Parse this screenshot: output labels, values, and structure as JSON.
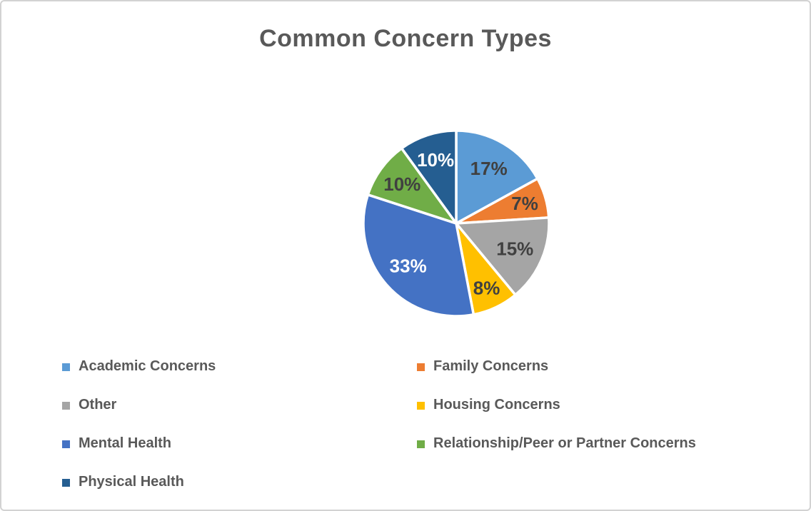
{
  "chart_data": {
    "type": "pie",
    "title": "Common Concern Types",
    "start_angle_deg": 0,
    "direction": "clockwise",
    "legend_position": "bottom",
    "legend_columns": 2,
    "title_color": "#595959",
    "slice_border_color": "#ffffff",
    "slices": [
      {
        "label": "Academic Concerns",
        "value": 17,
        "display": "17%",
        "color": "#5B9BD5",
        "label_color": "#404040"
      },
      {
        "label": "Family Concerns",
        "value": 7,
        "display": "7%",
        "color": "#ED7D31",
        "label_color": "#404040"
      },
      {
        "label": "Other",
        "value": 15,
        "display": "15%",
        "color": "#A5A5A5",
        "label_color": "#404040"
      },
      {
        "label": "Housing Concerns",
        "value": 8,
        "display": "8%",
        "color": "#FFC000",
        "label_color": "#404040"
      },
      {
        "label": "Mental Health",
        "value": 33,
        "display": "33%",
        "color": "#4472C4",
        "label_color": "#FFFFFF"
      },
      {
        "label": "Relationship/Peer or Partner Concerns",
        "value": 10,
        "display": "10%",
        "color": "#70AD47",
        "label_color": "#404040"
      },
      {
        "label": "Physical Health",
        "value": 10,
        "display": "10%",
        "color": "#255E91",
        "label_color": "#FFFFFF"
      }
    ]
  }
}
